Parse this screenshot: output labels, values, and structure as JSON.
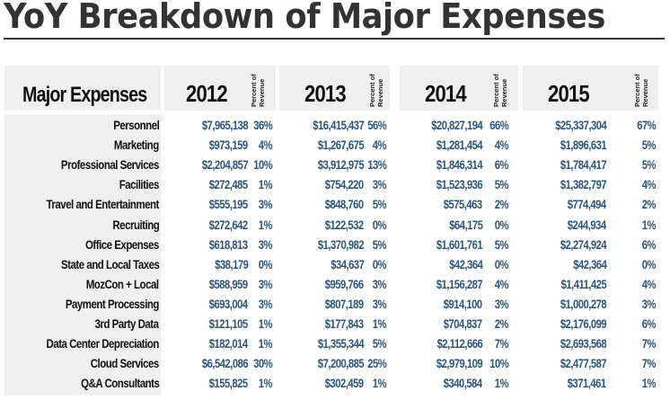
{
  "title": "YoY Breakdown of Major Expenses",
  "header": {
    "label_column": "Major Expenses",
    "percent_label_line1": "Percent of",
    "percent_label_line2": "Revenue",
    "years": [
      "2012",
      "2013",
      "2014",
      "2015"
    ]
  },
  "colors": {
    "title": "#333333",
    "panel_background": "#efefef",
    "value_text": "#2c5478",
    "label_text": "#111111"
  },
  "rows": [
    {
      "label": "Personnel",
      "values": [
        [
          "$7,965,138",
          "36%"
        ],
        [
          "$16,415,437",
          "56%"
        ],
        [
          "$20,827,194",
          "66%"
        ],
        [
          "$25,337,304",
          "67%"
        ]
      ]
    },
    {
      "label": "Marketing",
      "values": [
        [
          "$973,159",
          "4%"
        ],
        [
          "$1,267,675",
          "4%"
        ],
        [
          "$1,281,454",
          "4%"
        ],
        [
          "$1,896,631",
          "5%"
        ]
      ]
    },
    {
      "label": "Professional Services",
      "values": [
        [
          "$2,204,857",
          "10%"
        ],
        [
          "$3,912,975",
          "13%"
        ],
        [
          "$1,846,314",
          "6%"
        ],
        [
          "$1,784,417",
          "5%"
        ]
      ]
    },
    {
      "label": "Facilities",
      "values": [
        [
          "$272,485",
          "1%"
        ],
        [
          "$754,220",
          "3%"
        ],
        [
          "$1,523,936",
          "5%"
        ],
        [
          "$1,382,797",
          "4%"
        ]
      ]
    },
    {
      "label": "Travel and Entertainment",
      "values": [
        [
          "$555,195",
          "3%"
        ],
        [
          "$848,760",
          "5%"
        ],
        [
          "$575,463",
          "2%"
        ],
        [
          "$774,494",
          "2%"
        ]
      ]
    },
    {
      "label": "Recruiting",
      "values": [
        [
          "$272,642",
          "1%"
        ],
        [
          "$122,532",
          "0%"
        ],
        [
          "$64,175",
          "0%"
        ],
        [
          "$244,934",
          "1%"
        ]
      ]
    },
    {
      "label": "Office Expenses",
      "values": [
        [
          "$618,813",
          "3%"
        ],
        [
          "$1,370,982",
          "5%"
        ],
        [
          "$1,601,761",
          "5%"
        ],
        [
          "$2,274,924",
          "6%"
        ]
      ]
    },
    {
      "label": "State and Local Taxes",
      "values": [
        [
          "$38,179",
          "0%"
        ],
        [
          "$34,637",
          "0%"
        ],
        [
          "$42,364",
          "0%"
        ],
        [
          "$42,364",
          "0%"
        ]
      ]
    },
    {
      "label": "MozCon + Local",
      "values": [
        [
          "$588,959",
          "3%"
        ],
        [
          "$959,766",
          "3%"
        ],
        [
          "$1,156,287",
          "4%"
        ],
        [
          "$1,411,425",
          "4%"
        ]
      ]
    },
    {
      "label": "Payment  Processing",
      "values": [
        [
          "$693,004",
          "3%"
        ],
        [
          "$807,189",
          "3%"
        ],
        [
          "$914,100",
          "3%"
        ],
        [
          "$1,000,278",
          "3%"
        ]
      ]
    },
    {
      "label": "3rd Party Data",
      "values": [
        [
          "$121,105",
          "1%"
        ],
        [
          "$177,843",
          "1%"
        ],
        [
          "$704,837",
          "2%"
        ],
        [
          "$2,176,099",
          "6%"
        ]
      ]
    },
    {
      "label": "Data Center Depreciation",
      "values": [
        [
          "$182,014",
          "1%"
        ],
        [
          "$1,355,344",
          "5%"
        ],
        [
          "$2,112,666",
          "7%"
        ],
        [
          "$2,693,568",
          "7%"
        ]
      ]
    },
    {
      "label": "Cloud Services",
      "values": [
        [
          "$6,542,086",
          "30%"
        ],
        [
          "$7,200,885",
          "25%"
        ],
        [
          "$2,979,109",
          "10%"
        ],
        [
          "$2,477,587",
          "7%"
        ]
      ]
    },
    {
      "label": "Q&A Consultants",
      "values": [
        [
          "$155,825",
          "1%"
        ],
        [
          "$302,459",
          "1%"
        ],
        [
          "$340,584",
          "1%"
        ],
        [
          "$371,461",
          "1%"
        ]
      ]
    }
  ]
}
